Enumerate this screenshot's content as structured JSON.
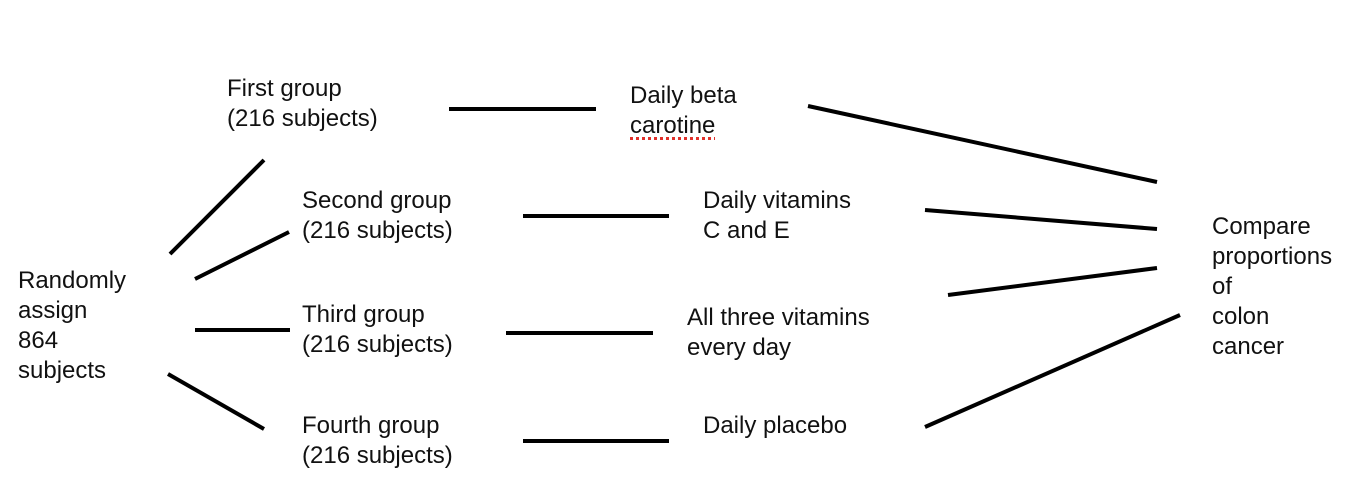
{
  "start": {
    "lines": [
      "Randomly",
      "assign",
      "864",
      "subjects"
    ]
  },
  "groups": [
    {
      "name": "First group",
      "size": "(216 subjects)"
    },
    {
      "name": "Second group",
      "size": "(216 subjects)"
    },
    {
      "name": "Third group",
      "size": "(216 subjects)"
    },
    {
      "name": "Fourth group",
      "size": "(216 subjects)"
    }
  ],
  "treatments": [
    {
      "line1": "Daily beta",
      "line2": "carotine"
    },
    {
      "line1": "Daily vitamins",
      "line2": "C and E"
    },
    {
      "line1": "All three vitamins",
      "line2": "every day"
    },
    {
      "line1": "Daily placebo",
      "line2": ""
    }
  ],
  "outcome": {
    "lines": [
      "Compare",
      "proportions",
      "of",
      "colon",
      "cancer"
    ]
  },
  "colors": {
    "lines": "#000000",
    "text": "#111111",
    "spellcheck_underline": "#e0302a"
  }
}
